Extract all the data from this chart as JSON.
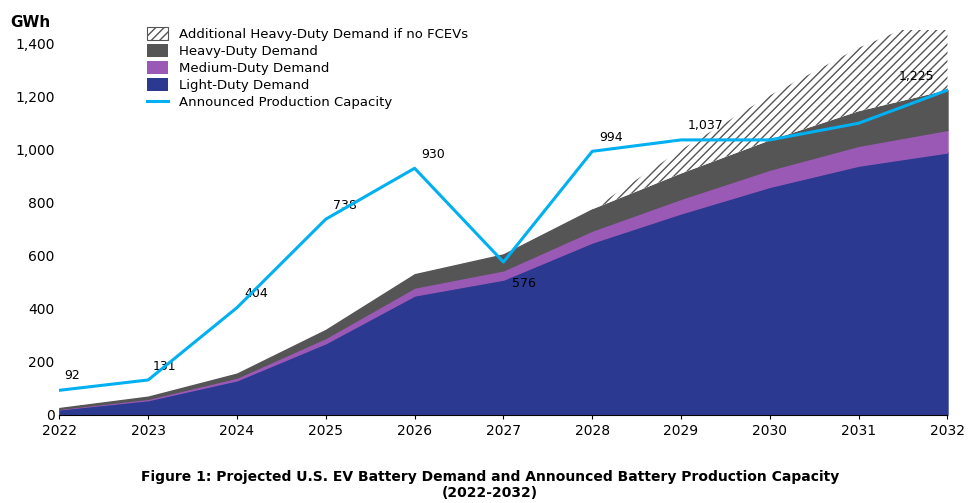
{
  "years": [
    2022,
    2023,
    2024,
    2025,
    2026,
    2027,
    2028,
    2029,
    2030,
    2031,
    2032
  ],
  "light_duty": [
    20,
    55,
    130,
    270,
    450,
    510,
    650,
    760,
    860,
    940,
    990
  ],
  "medium_duty": [
    2,
    5,
    10,
    20,
    30,
    35,
    45,
    55,
    65,
    75,
    85
  ],
  "heavy_duty": [
    3,
    8,
    15,
    30,
    50,
    60,
    80,
    95,
    110,
    130,
    150
  ],
  "add_heavy": [
    0,
    0,
    0,
    0,
    0,
    0,
    0,
    90,
    170,
    240,
    300
  ],
  "production_capacity": [
    92,
    131,
    404,
    738,
    930,
    576,
    994,
    1037,
    1037,
    1100,
    1225
  ],
  "capacity_labels": [
    92,
    131,
    404,
    738,
    930,
    576,
    994,
    1037,
    null,
    null,
    1225
  ],
  "light_duty_color": "#2b3990",
  "medium_duty_color": "#9b59b6",
  "heavy_duty_color": "#555555",
  "capacity_line_color": "#00b0f0",
  "ylim": [
    0,
    1450
  ],
  "yticks": [
    0,
    200,
    400,
    600,
    800,
    1000,
    1200,
    1400
  ],
  "ytick_labels": [
    "0",
    "200",
    "400",
    "600",
    "800",
    "1,000",
    "1,200",
    "1,400"
  ],
  "ylabel": "GWh",
  "caption": "Figure 1: Projected U.S. EV Battery Demand and Announced Battery Production Capacity\n(2022-2032)"
}
